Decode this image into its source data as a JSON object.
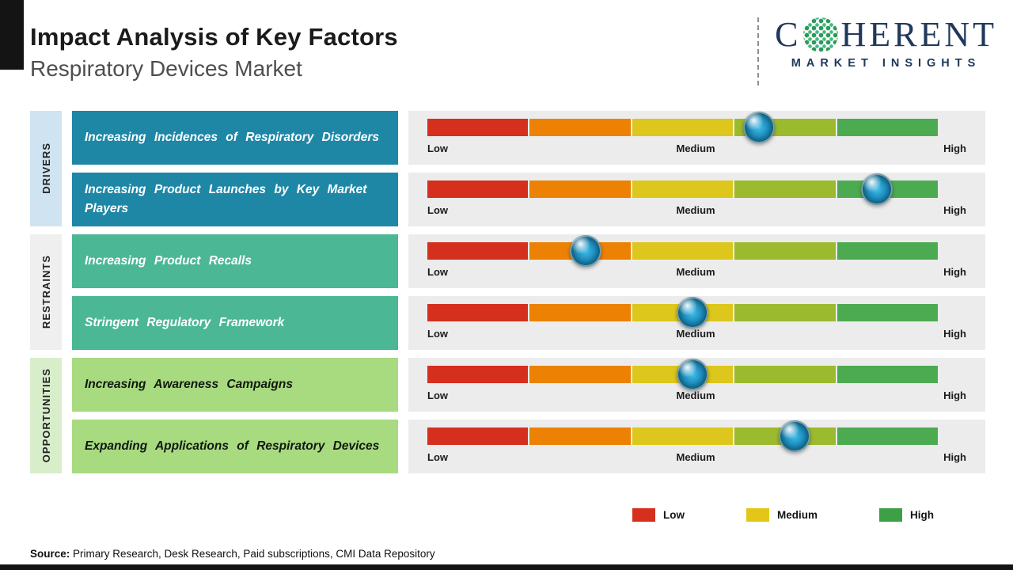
{
  "header": {
    "title": "Impact Analysis of Key Factors",
    "subtitle": "Respiratory Devices Market"
  },
  "logo": {
    "brand_start": "C",
    "brand_end": "HERENT",
    "tagline": "MARKET INSIGHTS",
    "brand_color": "#20395c"
  },
  "categories": [
    {
      "label": "DRIVERS"
    },
    {
      "label": "RESTRAINTS"
    },
    {
      "label": "OPPORTUNITIES"
    }
  ],
  "scale_labels": {
    "low": "Low",
    "medium": "Medium",
    "high": "High"
  },
  "scale_colors": [
    "#d52f1e",
    "#ec8104",
    "#ddc71c",
    "#9cba2e",
    "#4cab51"
  ],
  "palette": {
    "drivers_strip": "#cfe4f0",
    "restraints_strip": "#efefef",
    "opportunities_strip": "#d8eeca",
    "drivers_box": "#1e87a6",
    "restraints_box": "#4bb795",
    "opportunities_box": "#a8da80",
    "panel_bg": "#ececec",
    "marker_blue": "#1e8fc0"
  },
  "rows": [
    {
      "category": "Drivers",
      "factor": "Increasing Incidences of Respiratory Disorders",
      "impact_pct": 65
    },
    {
      "category": "Drivers",
      "factor": "Increasing Product Launches by Key Market Players",
      "impact_pct": 88
    },
    {
      "category": "Restraints",
      "factor": "Increasing Product Recalls",
      "impact_pct": 31
    },
    {
      "category": "Restraints",
      "factor": "Stringent Regulatory Framework",
      "impact_pct": 52
    },
    {
      "category": "Opportunities",
      "factor": "Increasing Awareness Campaigns",
      "impact_pct": 52
    },
    {
      "category": "Opportunities",
      "factor": "Expanding Applications of Respiratory Devices",
      "impact_pct": 72
    }
  ],
  "legend": [
    {
      "label": "Low",
      "color": "#d52f1e"
    },
    {
      "label": "Medium",
      "color": "#e3c617"
    },
    {
      "label": "High",
      "color": "#3da047"
    }
  ],
  "source": {
    "prefix": "Source:",
    "text": " Primary Research, Desk Research, Paid subscriptions, CMI Data Repository"
  },
  "chart_data": {
    "type": "bar",
    "title": "Impact Analysis of Key Factors",
    "subtitle": "Respiratory Devices Market",
    "scale": [
      "Low",
      "Medium",
      "High"
    ],
    "categories": [
      "Increasing Incidences of Respiratory Disorders",
      "Increasing Product Launches by Key Market Players",
      "Increasing Product Recalls",
      "Stringent Regulatory Framework",
      "Increasing Awareness Campaigns",
      "Expanding Applications of Respiratory Devices"
    ],
    "groups": [
      "Drivers",
      "Drivers",
      "Restraints",
      "Restraints",
      "Opportunities",
      "Opportunities"
    ],
    "values_pct_of_scale": [
      65,
      88,
      31,
      52,
      52,
      72
    ],
    "xlim": [
      "Low",
      "High"
    ],
    "legend": [
      "Low",
      "Medium",
      "High"
    ],
    "legend_position": "bottom",
    "grid": false
  }
}
